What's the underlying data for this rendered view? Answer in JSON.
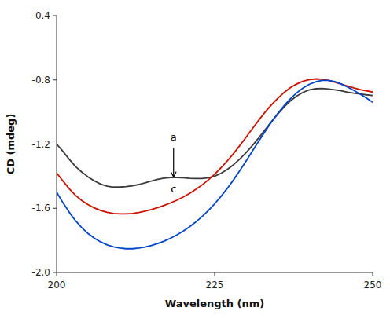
{
  "chart_data": {
    "type": "line",
    "xlabel": "Wavelength (nm)",
    "ylabel": "CD (mdeg)",
    "xlim": [
      200,
      250
    ],
    "ylim": [
      -2.0,
      -0.4
    ],
    "xticks": [
      200,
      225,
      250
    ],
    "yticks": [
      {
        "value": -2.0,
        "label": "-2.0"
      },
      -1.6,
      -1.2,
      -0.8,
      -0.4
    ],
    "grid": false,
    "x": [
      200,
      201,
      202,
      203,
      204,
      205,
      206,
      207,
      208,
      209,
      210,
      211,
      212,
      213,
      214,
      215,
      216,
      217,
      218,
      219,
      220,
      221,
      222,
      223,
      224,
      225,
      226,
      227,
      228,
      229,
      230,
      231,
      232,
      233,
      234,
      235,
      236,
      237,
      238,
      239,
      240,
      241,
      242,
      243,
      244,
      245,
      246,
      247,
      248,
      249,
      250
    ],
    "series": [
      {
        "color": "#3a3a3a",
        "values": [
          -1.2,
          -1.245,
          -1.295,
          -1.34,
          -1.375,
          -1.405,
          -1.43,
          -1.45,
          -1.462,
          -1.468,
          -1.468,
          -1.465,
          -1.46,
          -1.452,
          -1.442,
          -1.43,
          -1.42,
          -1.412,
          -1.408,
          -1.408,
          -1.41,
          -1.413,
          -1.415,
          -1.415,
          -1.41,
          -1.4,
          -1.382,
          -1.358,
          -1.328,
          -1.292,
          -1.252,
          -1.208,
          -1.16,
          -1.11,
          -1.06,
          -1.012,
          -0.968,
          -0.93,
          -0.9,
          -0.877,
          -0.862,
          -0.855,
          -0.853,
          -0.857,
          -0.862,
          -0.868,
          -0.876,
          -0.883,
          -0.888,
          -0.893,
          -0.897
        ]
      },
      {
        "color": "#cc1100",
        "values": [
          -1.38,
          -1.43,
          -1.478,
          -1.52,
          -1.552,
          -1.578,
          -1.598,
          -1.614,
          -1.625,
          -1.632,
          -1.635,
          -1.635,
          -1.632,
          -1.626,
          -1.618,
          -1.608,
          -1.596,
          -1.582,
          -1.567,
          -1.55,
          -1.53,
          -1.508,
          -1.483,
          -1.455,
          -1.423,
          -1.388,
          -1.348,
          -1.305,
          -1.258,
          -1.208,
          -1.156,
          -1.102,
          -1.05,
          -1.0,
          -0.955,
          -0.914,
          -0.878,
          -0.848,
          -0.825,
          -0.808,
          -0.798,
          -0.794,
          -0.796,
          -0.803,
          -0.814,
          -0.826,
          -0.838,
          -0.85,
          -0.86,
          -0.868,
          -0.876
        ]
      },
      {
        "color": "#0044cc",
        "values": [
          -1.5,
          -1.565,
          -1.625,
          -1.678,
          -1.722,
          -1.758,
          -1.787,
          -1.81,
          -1.828,
          -1.84,
          -1.848,
          -1.852,
          -1.852,
          -1.848,
          -1.842,
          -1.832,
          -1.82,
          -1.805,
          -1.787,
          -1.766,
          -1.743,
          -1.716,
          -1.686,
          -1.652,
          -1.614,
          -1.572,
          -1.526,
          -1.476,
          -1.422,
          -1.364,
          -1.304,
          -1.242,
          -1.18,
          -1.12,
          -1.062,
          -1.008,
          -0.96,
          -0.917,
          -0.88,
          -0.85,
          -0.827,
          -0.812,
          -0.803,
          -0.803,
          -0.81,
          -0.825,
          -0.844,
          -0.865,
          -0.888,
          -0.913,
          -0.94
        ]
      }
    ],
    "annotations": [
      {
        "text": "a",
        "x": 218.5,
        "y": -1.195
      },
      {
        "text": "c",
        "x": 218.5,
        "y": -1.435
      }
    ],
    "arrows": [
      {
        "x": 218.5,
        "y_start": -1.225,
        "y_end": -1.405
      }
    ]
  }
}
